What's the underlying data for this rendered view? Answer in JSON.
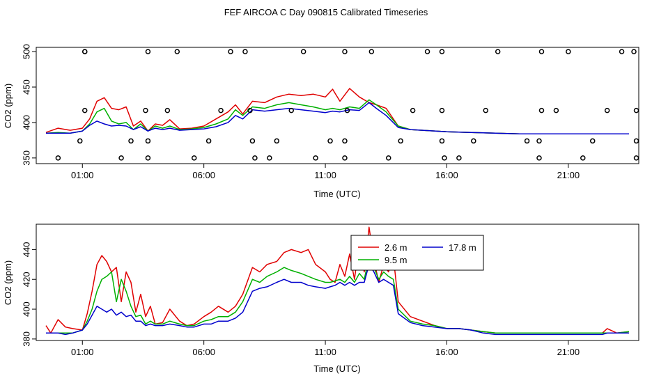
{
  "title": "FEF AIRCOA C  Day 090815  Calibrated Timeseries",
  "colors": {
    "2.6 m": "#e00000",
    "9.5 m": "#00b000",
    "17.8 m": "#0000cc",
    "axis": "#000000"
  },
  "chart_data": [
    {
      "type": "scatter+line",
      "panel": "top",
      "xlabel": "Time (UTC)",
      "ylabel": "CO2 (ppm)",
      "xlim": [
        -0.9,
        23.9
      ],
      "ylim": [
        342,
        506
      ],
      "xticks": [
        1,
        6,
        11,
        16,
        21
      ],
      "xticklabels": [
        "01:00",
        "06:00",
        "11:00",
        "16:00",
        "21:00"
      ],
      "yticks": [
        350,
        400,
        450,
        500
      ],
      "yticklabels": [
        "350",
        "400",
        "450",
        "500"
      ],
      "points": [
        {
          "x": 1.1,
          "y": 417
        },
        {
          "x": 3.6,
          "y": 417
        },
        {
          "x": 4.5,
          "y": 417
        },
        {
          "x": 6.7,
          "y": 417
        },
        {
          "x": 7.9,
          "y": 417
        },
        {
          "x": 9.6,
          "y": 417
        },
        {
          "x": 11.9,
          "y": 417
        },
        {
          "x": 14.6,
          "y": 417
        },
        {
          "x": 15.8,
          "y": 417
        },
        {
          "x": 17.6,
          "y": 417
        },
        {
          "x": 19.9,
          "y": 417
        },
        {
          "x": 20.5,
          "y": 417
        },
        {
          "x": 22.6,
          "y": 417
        },
        {
          "x": 23.8,
          "y": 417
        },
        {
          "x": 1.1,
          "y": 500
        },
        {
          "x": 3.7,
          "y": 500
        },
        {
          "x": 4.9,
          "y": 500
        },
        {
          "x": 7.1,
          "y": 500
        },
        {
          "x": 7.7,
          "y": 500
        },
        {
          "x": 10.1,
          "y": 500
        },
        {
          "x": 11.8,
          "y": 500
        },
        {
          "x": 12.9,
          "y": 500
        },
        {
          "x": 15.2,
          "y": 500
        },
        {
          "x": 15.8,
          "y": 500
        },
        {
          "x": 18.1,
          "y": 500
        },
        {
          "x": 19.9,
          "y": 500
        },
        {
          "x": 21.0,
          "y": 500
        },
        {
          "x": 23.2,
          "y": 500
        },
        {
          "x": 23.7,
          "y": 500
        },
        {
          "x": 1.1,
          "y": 500
        },
        {
          "x": 0.9,
          "y": 374
        },
        {
          "x": 3.0,
          "y": 374
        },
        {
          "x": 3.7,
          "y": 374
        },
        {
          "x": 6.2,
          "y": 374
        },
        {
          "x": 8.0,
          "y": 374
        },
        {
          "x": 9.0,
          "y": 374
        },
        {
          "x": 11.2,
          "y": 374
        },
        {
          "x": 11.8,
          "y": 374
        },
        {
          "x": 14.1,
          "y": 374
        },
        {
          "x": 15.8,
          "y": 374
        },
        {
          "x": 17.1,
          "y": 374
        },
        {
          "x": 19.3,
          "y": 374
        },
        {
          "x": 19.8,
          "y": 374
        },
        {
          "x": 22.0,
          "y": 374
        },
        {
          "x": 23.8,
          "y": 374
        },
        {
          "x": 0.0,
          "y": 350
        },
        {
          "x": 2.6,
          "y": 350
        },
        {
          "x": 3.7,
          "y": 350
        },
        {
          "x": 5.6,
          "y": 350
        },
        {
          "x": 8.1,
          "y": 350
        },
        {
          "x": 8.7,
          "y": 350
        },
        {
          "x": 10.6,
          "y": 350
        },
        {
          "x": 11.8,
          "y": 350
        },
        {
          "x": 13.6,
          "y": 350
        },
        {
          "x": 15.9,
          "y": 350
        },
        {
          "x": 16.5,
          "y": 350
        },
        {
          "x": 19.8,
          "y": 350
        },
        {
          "x": 21.6,
          "y": 350
        },
        {
          "x": 23.8,
          "y": 350
        }
      ],
      "series": [
        {
          "name": "2.6 m",
          "color": "#e00000",
          "x": [
            -0.5,
            0,
            0.5,
            1,
            1.3,
            1.6,
            1.9,
            2.2,
            2.5,
            2.8,
            3.1,
            3.4,
            3.7,
            4,
            4.3,
            4.6,
            5,
            5.5,
            6,
            6.5,
            7,
            7.3,
            7.6,
            8,
            8.5,
            9,
            9.5,
            10,
            10.5,
            11,
            11.3,
            11.6,
            12,
            12.4,
            12.8,
            13.1,
            13.5,
            14,
            14.5,
            15,
            16,
            17,
            18,
            19,
            20,
            21,
            22,
            22.5,
            23,
            23.5
          ],
          "y": [
            386,
            392,
            389,
            392,
            405,
            430,
            435,
            420,
            418,
            422,
            395,
            402,
            388,
            398,
            396,
            404,
            391,
            392,
            395,
            405,
            415,
            425,
            412,
            430,
            428,
            436,
            440,
            438,
            440,
            436,
            447,
            430,
            448,
            436,
            428,
            425,
            420,
            395,
            390,
            389,
            387,
            386,
            385,
            384,
            384,
            384,
            384,
            384,
            384,
            384
          ]
        },
        {
          "name": "9.5 m",
          "color": "#00b000",
          "x": [
            -0.5,
            0,
            0.5,
            1,
            1.3,
            1.6,
            1.9,
            2.2,
            2.5,
            2.8,
            3.1,
            3.4,
            3.7,
            4,
            4.3,
            4.6,
            5,
            5.5,
            6,
            6.5,
            7,
            7.3,
            7.6,
            8,
            8.5,
            9,
            9.5,
            10,
            10.5,
            11,
            11.3,
            11.6,
            12,
            12.4,
            12.8,
            13.1,
            13.5,
            14,
            14.5,
            15,
            16,
            17,
            18,
            19,
            20,
            21,
            22,
            22.5,
            23,
            23.5
          ],
          "y": [
            385,
            386,
            385,
            388,
            398,
            415,
            420,
            402,
            398,
            400,
            390,
            398,
            388,
            395,
            392,
            395,
            390,
            391,
            393,
            398,
            405,
            418,
            410,
            422,
            420,
            425,
            428,
            425,
            422,
            418,
            420,
            418,
            422,
            420,
            432,
            425,
            415,
            395,
            390,
            389,
            387,
            386,
            385,
            384,
            384,
            384,
            384,
            384,
            384,
            384
          ]
        },
        {
          "name": "17.8 m",
          "color": "#0000cc",
          "x": [
            -0.5,
            0,
            0.5,
            1,
            1.3,
            1.6,
            1.9,
            2.2,
            2.5,
            2.8,
            3.1,
            3.4,
            3.7,
            4,
            4.3,
            4.6,
            5,
            5.5,
            6,
            6.5,
            7,
            7.3,
            7.6,
            8,
            8.5,
            9,
            9.5,
            10,
            10.5,
            11,
            11.3,
            11.6,
            12,
            12.4,
            12.8,
            13.1,
            13.5,
            14,
            14.5,
            15,
            16,
            17,
            18,
            19,
            20,
            21,
            22,
            22.5,
            23,
            23.5
          ],
          "y": [
            385,
            385,
            385,
            388,
            396,
            402,
            398,
            395,
            396,
            395,
            390,
            394,
            388,
            392,
            390,
            392,
            389,
            390,
            391,
            394,
            400,
            410,
            405,
            418,
            416,
            418,
            420,
            418,
            416,
            414,
            416,
            415,
            418,
            417,
            428,
            420,
            410,
            393,
            390,
            389,
            387,
            386,
            385,
            384,
            384,
            384,
            384,
            384,
            384,
            384
          ]
        }
      ]
    },
    {
      "type": "line",
      "panel": "bottom",
      "xlabel": "Time (UTC)",
      "ylabel": "CO2 (ppm)",
      "xlim": [
        -0.9,
        23.9
      ],
      "ylim": [
        379,
        457
      ],
      "xticks": [
        1,
        6,
        11,
        16,
        21
      ],
      "xticklabels": [
        "01:00",
        "06:00",
        "11:00",
        "16:00",
        "21:00"
      ],
      "yticks": [
        380,
        400,
        420,
        440
      ],
      "yticklabels": [
        "380",
        "400",
        "420",
        "440"
      ],
      "legend": {
        "placement": "top-center",
        "entries": [
          "2.6 m",
          "9.5 m",
          "17.8 m"
        ]
      },
      "series": [
        {
          "name": "2.6 m",
          "color": "#e00000",
          "x": [
            -0.5,
            -0.3,
            0,
            0.3,
            0.6,
            1,
            1.2,
            1.4,
            1.6,
            1.8,
            2,
            2.2,
            2.4,
            2.6,
            2.8,
            3,
            3.2,
            3.4,
            3.6,
            3.8,
            4,
            4.3,
            4.6,
            5,
            5.3,
            5.6,
            6,
            6.3,
            6.6,
            7,
            7.3,
            7.6,
            8,
            8.3,
            8.6,
            9,
            9.3,
            9.6,
            10,
            10.3,
            10.6,
            11,
            11.2,
            11.4,
            11.6,
            11.8,
            12,
            12.2,
            12.4,
            12.6,
            12.8,
            13,
            13.2,
            13.4,
            13.6,
            13.8,
            14,
            14.5,
            15,
            15.5,
            16,
            16.5,
            17,
            17.5,
            18,
            18.5,
            19,
            19.5,
            20,
            20.5,
            21,
            21.5,
            22,
            22.4,
            22.6,
            23,
            23.5
          ],
          "y": [
            389,
            384,
            393,
            388,
            387,
            386,
            397,
            412,
            430,
            436,
            432,
            425,
            428,
            405,
            425,
            418,
            398,
            410,
            395,
            402,
            390,
            391,
            400,
            392,
            389,
            390,
            395,
            398,
            402,
            398,
            402,
            410,
            428,
            425,
            430,
            432,
            438,
            440,
            438,
            440,
            430,
            425,
            420,
            418,
            430,
            422,
            437,
            420,
            445,
            425,
            455,
            433,
            418,
            430,
            425,
            435,
            405,
            395,
            392,
            389,
            387,
            387,
            386,
            385,
            384,
            384,
            384,
            384,
            384,
            384,
            384,
            384,
            384,
            384,
            387,
            384,
            385
          ]
        },
        {
          "name": "9.5 m",
          "color": "#00b000",
          "x": [
            -0.5,
            -0.3,
            0,
            0.3,
            0.6,
            1,
            1.2,
            1.4,
            1.6,
            1.8,
            2,
            2.2,
            2.4,
            2.6,
            2.8,
            3,
            3.2,
            3.4,
            3.6,
            3.8,
            4,
            4.3,
            4.6,
            5,
            5.3,
            5.6,
            6,
            6.3,
            6.6,
            7,
            7.3,
            7.6,
            8,
            8.3,
            8.6,
            9,
            9.3,
            9.6,
            10,
            10.3,
            10.6,
            11,
            11.2,
            11.4,
            11.6,
            11.8,
            12,
            12.2,
            12.4,
            12.6,
            12.8,
            13,
            13.2,
            13.4,
            13.6,
            13.8,
            14,
            14.5,
            15,
            15.5,
            16,
            16.5,
            17,
            17.5,
            18,
            18.5,
            19,
            19.5,
            20,
            20.5,
            21,
            21.5,
            22,
            22.4,
            22.6,
            23,
            23.5
          ],
          "y": [
            384,
            384,
            384,
            384,
            384,
            386,
            392,
            400,
            412,
            420,
            422,
            425,
            405,
            420,
            412,
            402,
            395,
            396,
            390,
            392,
            390,
            390,
            392,
            390,
            389,
            389,
            392,
            393,
            395,
            395,
            398,
            405,
            420,
            418,
            422,
            425,
            428,
            426,
            424,
            422,
            420,
            418,
            418,
            419,
            420,
            418,
            422,
            418,
            424,
            420,
            435,
            428,
            420,
            425,
            422,
            420,
            400,
            392,
            390,
            389,
            387,
            387,
            386,
            385,
            384,
            384,
            384,
            384,
            384,
            384,
            384,
            384,
            384,
            384,
            384,
            384,
            385
          ]
        },
        {
          "name": "17.8 m",
          "color": "#0000cc",
          "x": [
            -0.5,
            -0.3,
            0,
            0.3,
            0.6,
            1,
            1.2,
            1.4,
            1.6,
            1.8,
            2,
            2.2,
            2.4,
            2.6,
            2.8,
            3,
            3.2,
            3.4,
            3.6,
            3.8,
            4,
            4.3,
            4.6,
            5,
            5.3,
            5.6,
            6,
            6.3,
            6.6,
            7,
            7.3,
            7.6,
            8,
            8.3,
            8.6,
            9,
            9.3,
            9.6,
            10,
            10.3,
            10.6,
            11,
            11.2,
            11.4,
            11.6,
            11.8,
            12,
            12.2,
            12.4,
            12.6,
            12.8,
            13,
            13.2,
            13.4,
            13.6,
            13.8,
            14,
            14.5,
            15,
            15.5,
            16,
            16.5,
            17,
            17.5,
            18,
            18.5,
            19,
            19.5,
            20,
            20.5,
            21,
            21.5,
            22,
            22.4,
            22.6,
            23,
            23.5
          ],
          "y": [
            384,
            384,
            384,
            383,
            384,
            386,
            390,
            396,
            402,
            400,
            398,
            400,
            396,
            398,
            395,
            396,
            392,
            392,
            389,
            390,
            389,
            389,
            390,
            389,
            388,
            388,
            390,
            390,
            392,
            392,
            394,
            398,
            412,
            414,
            415,
            418,
            420,
            418,
            418,
            416,
            415,
            414,
            415,
            416,
            418,
            416,
            418,
            416,
            418,
            418,
            430,
            425,
            418,
            420,
            418,
            416,
            397,
            391,
            389,
            388,
            387,
            387,
            386,
            384,
            383,
            383,
            383,
            383,
            383,
            383,
            383,
            383,
            383,
            383,
            384,
            384,
            384
          ]
        }
      ]
    }
  ]
}
